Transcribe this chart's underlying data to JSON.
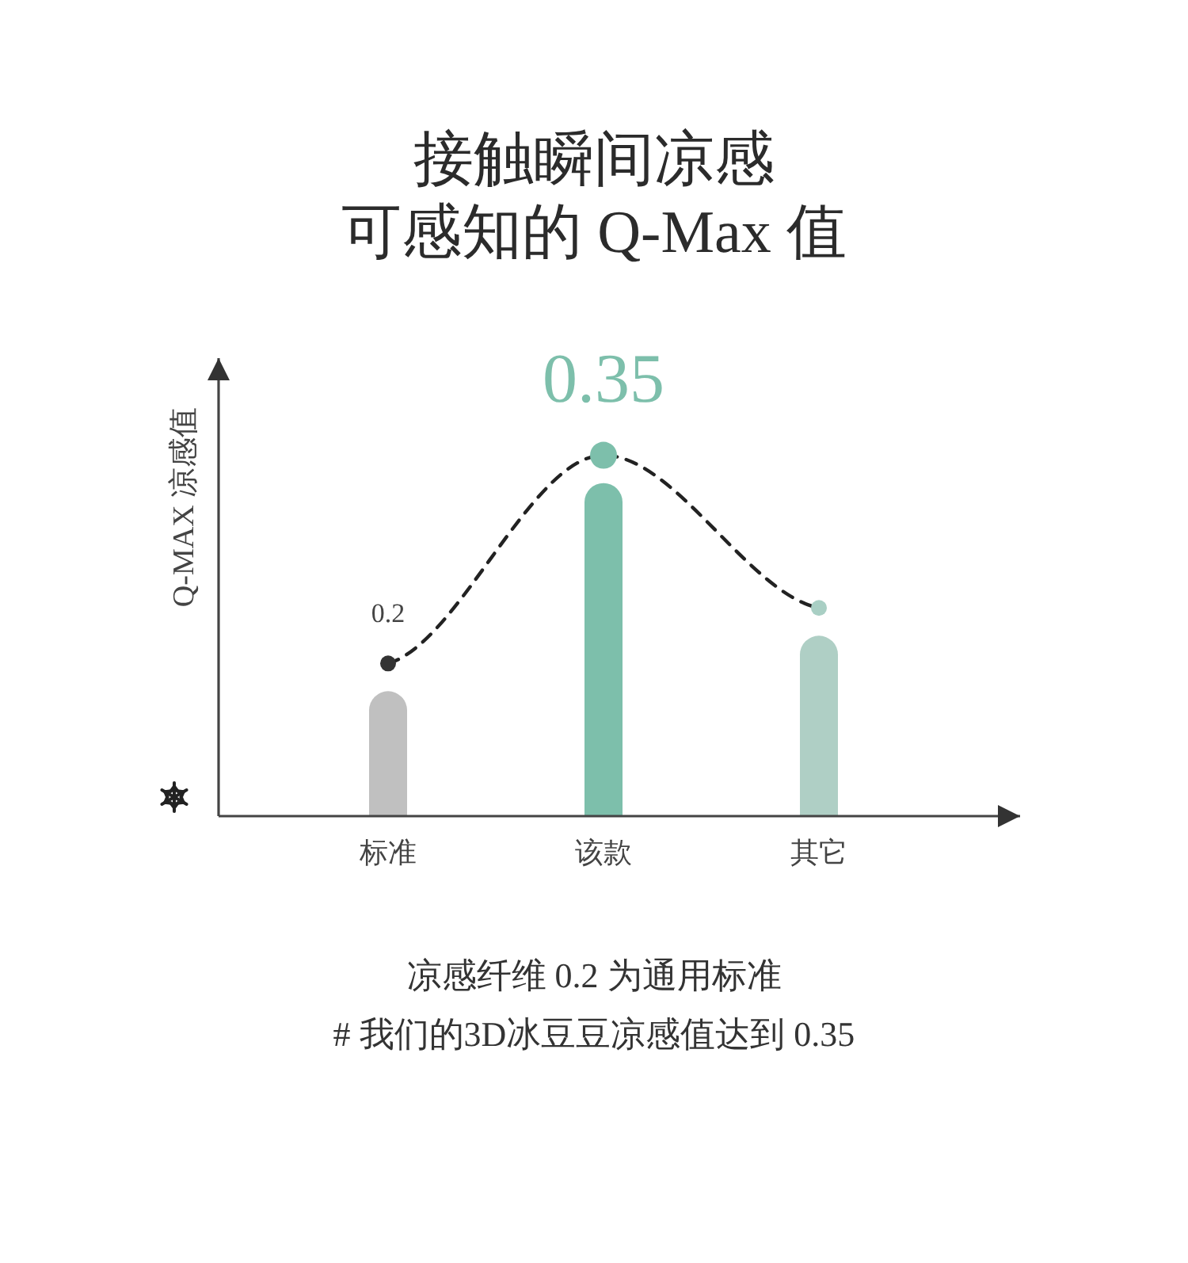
{
  "chart_data": {
    "type": "bar",
    "title": "接触瞬间凉感",
    "subtitle": "可感知的 Q-Max 值",
    "ylabel": "Q-MAX 凉感值",
    "categories": [
      "标准",
      "该款",
      "其它"
    ],
    "ylim": [
      0.09,
      0.42
    ],
    "tick_labels": "x",
    "series": [
      {
        "colors": [
          "#c0c0c0",
          "#7dbfab",
          "#afcfc5"
        ],
        "values": [
          0.18,
          0.33,
          0.22
        ]
      },
      {
        "type": "line",
        "color": "#222222",
        "colors": [
          "#333333",
          "#7dbfab",
          "#a9cfc4"
        ],
        "values": [
          0.2,
          0.35,
          0.24
        ],
        "value_labels": [
          "0.2",
          "0.35",
          null
        ],
        "line_style": "dashed",
        "marker": "circle"
      }
    ],
    "annotations": [
      "凉感纤维 0.2 为通用标准",
      "# 我们的3D冰豆豆凉感值达到 0.35"
    ]
  }
}
